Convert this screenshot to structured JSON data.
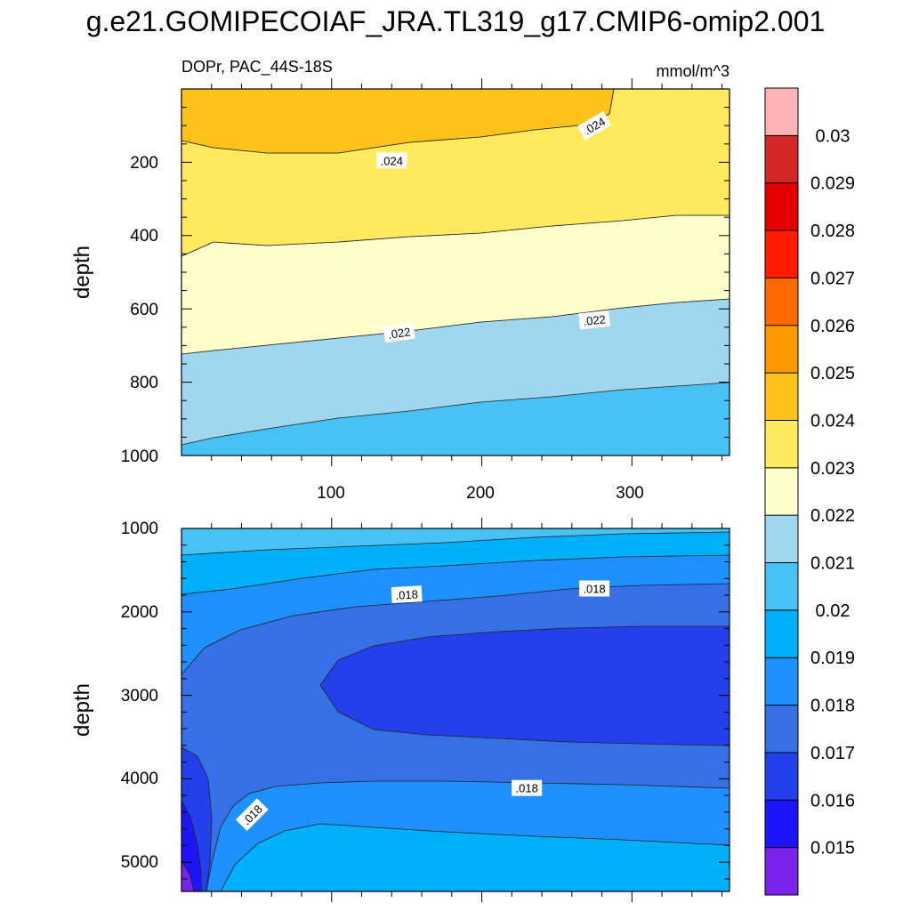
{
  "title": "g.e21.GOMIPECOIAF_JRA.TL319_g17.CMIP6-omip2.001",
  "chart_data": {
    "type": "contour",
    "variable": "DOPr",
    "region": "PAC_44S-18S",
    "left_string": "DOPr, PAC_44S-18S",
    "units": "mmol/m^3",
    "colorbar": {
      "levels": [
        "0.015",
        "0.016",
        "0.017",
        "0.018",
        "0.019",
        "0.02",
        "0.021",
        "0.022",
        "0.023",
        "0.024",
        "0.025",
        "0.026",
        "0.027",
        "0.028",
        "0.029",
        "0.03"
      ],
      "colors": [
        "#FFB3B3",
        "#D42828",
        "#E50000",
        "#FF1A00",
        "#FF6A00",
        "#FF9900",
        "#FFC21A",
        "#FFE95C",
        "#FFFFCC",
        "#A0D6EE",
        "#48C2F5",
        "#00B0FA",
        "#1E90FF",
        "#3570E6",
        "#2340EB",
        "#1E14FA",
        "#7B22EB"
      ]
    },
    "panels": [
      {
        "name": "upper",
        "ylabel": "depth",
        "xlim": [
          0,
          365
        ],
        "ylim": [
          1000,
          0
        ],
        "xticks": [
          100,
          200,
          300
        ],
        "xtick_labels": [
          "100",
          "200",
          "300"
        ],
        "yticks": [
          200,
          400,
          600,
          800,
          1000
        ],
        "ytick_labels": [
          "200",
          "400",
          "600",
          "800",
          "1000"
        ],
        "line_labels": [
          {
            "text": ".024",
            "x": 140,
            "y": 195
          },
          {
            "text": ".024",
            "x": 275,
            "y": 100
          },
          {
            "text": ".022",
            "x": 145,
            "y": 665
          },
          {
            "text": ".022",
            "x": 275,
            "y": 630
          }
        ]
      },
      {
        "name": "lower",
        "ylabel": "depth",
        "xlim": [
          0,
          365
        ],
        "ylim": [
          5350,
          1000
        ],
        "yticks": [
          1000,
          2000,
          3000,
          4000,
          5000
        ],
        "ytick_labels": [
          "1000",
          "2000",
          "3000",
          "4000",
          "5000"
        ],
        "line_labels": [
          {
            "text": ".018",
            "x": 150,
            "y": 1790
          },
          {
            "text": ".018",
            "x": 275,
            "y": 1720
          },
          {
            "text": ".018",
            "x": 230,
            "y": 4110
          },
          {
            "text": ".018",
            "x": 47,
            "y": 4430
          }
        ]
      }
    ]
  }
}
